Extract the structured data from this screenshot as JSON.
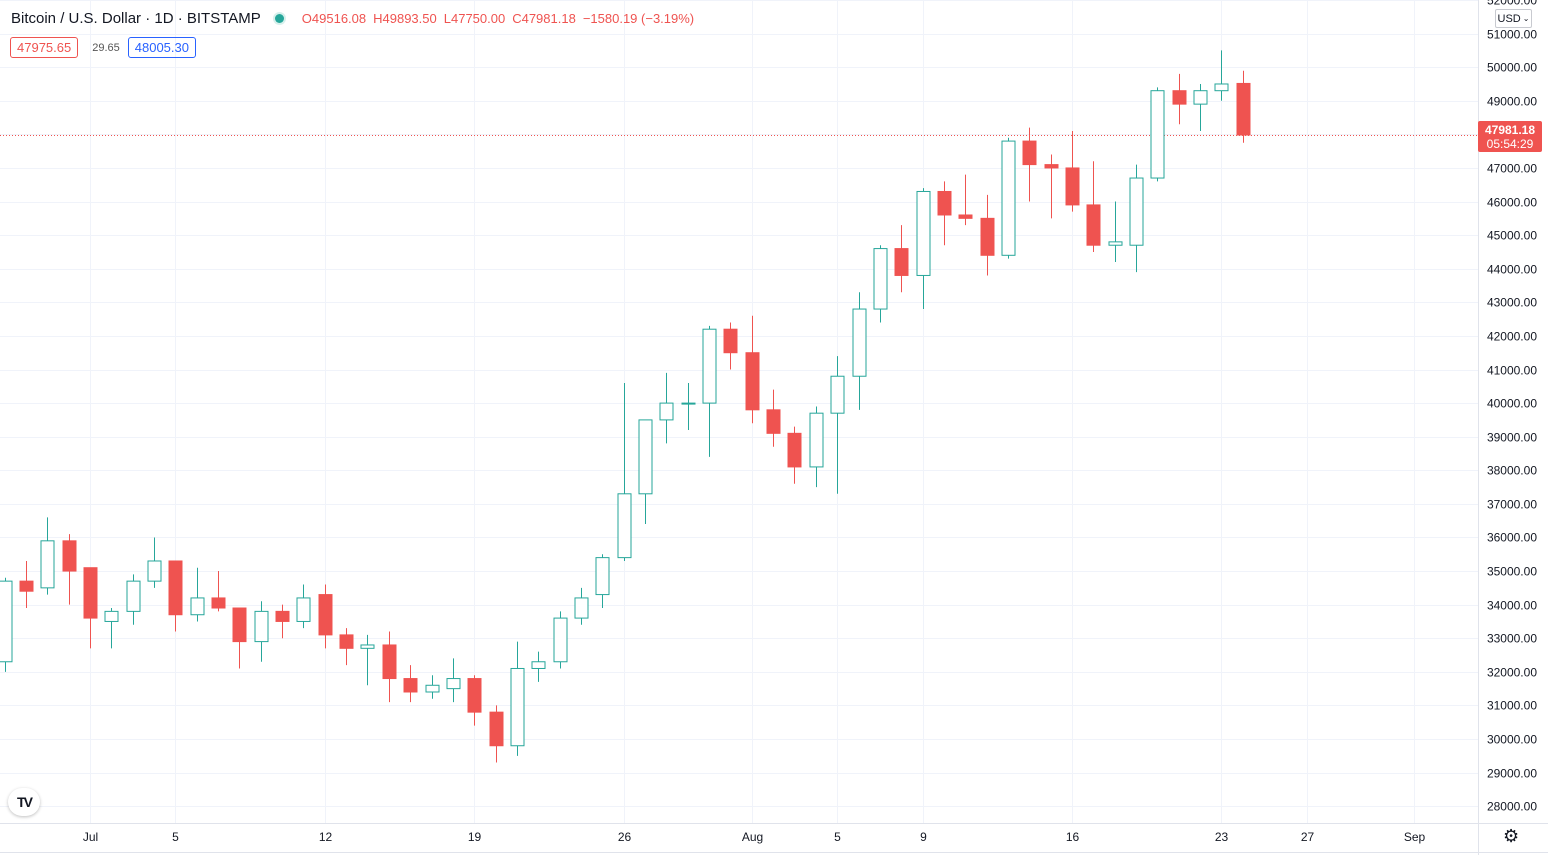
{
  "header": {
    "symbol": "Bitcoin / U.S. Dollar · 1D · BITSTAMP",
    "open": "O49516.08",
    "high": "H49893.50",
    "low": "L47750.00",
    "close": "C47981.18",
    "change": "−1580.19 (−3.19%)"
  },
  "quote": {
    "bid": "47975.65",
    "spread": "29.65",
    "ask": "48005.30"
  },
  "currency_label": "USD",
  "logo_text": "TV",
  "last_price": {
    "value": "47981.18",
    "countdown": "05:54:29"
  },
  "colors": {
    "up": "#26a69a",
    "down": "#ef5350",
    "grid": "#f0f3fa",
    "text": "#131722"
  },
  "icons": {
    "settings": "gear-icon",
    "dropdown": "chevron-down-icon",
    "logo": "tradingview-logo-icon"
  },
  "chart_data": {
    "type": "candlestick",
    "ylim": [
      27500,
      52000
    ],
    "y_ticks": [
      28000,
      29000,
      30000,
      31000,
      32000,
      33000,
      34000,
      35000,
      36000,
      37000,
      38000,
      39000,
      40000,
      41000,
      42000,
      43000,
      44000,
      45000,
      46000,
      47000,
      48000,
      49000,
      50000,
      51000,
      52000
    ],
    "y_tick_labels": [
      "28000.00",
      "29000.00",
      "30000.00",
      "31000.00",
      "32000.00",
      "33000.00",
      "34000.00",
      "35000.00",
      "36000.00",
      "37000.00",
      "38000.00",
      "39000.00",
      "40000.00",
      "41000.00",
      "42000.00",
      "43000.00",
      "44000.00",
      "45000.00",
      "46000.00",
      "47000.00",
      "48000.00",
      "49000.00",
      "50000.00",
      "51000.00",
      "52000.00"
    ],
    "x_tick_labels": [
      {
        "date": "2021-07-01",
        "label": "Jul"
      },
      {
        "date": "2021-07-05",
        "label": "5"
      },
      {
        "date": "2021-07-12",
        "label": "12"
      },
      {
        "date": "2021-07-19",
        "label": "19"
      },
      {
        "date": "2021-07-26",
        "label": "26"
      },
      {
        "date": "2021-08-01",
        "label": "Aug"
      },
      {
        "date": "2021-08-05",
        "label": "5"
      },
      {
        "date": "2021-08-09",
        "label": "9"
      },
      {
        "date": "2021-08-16",
        "label": "16"
      },
      {
        "date": "2021-08-23",
        "label": "23"
      },
      {
        "date": "2021-08-27",
        "label": "27"
      },
      {
        "date": "2021-09-01",
        "label": "Sep"
      }
    ],
    "x_range": [
      "2021-06-27",
      "2021-09-03"
    ],
    "last_price_line": 47981.18,
    "candles": [
      {
        "date": "2021-06-27",
        "o": 32300,
        "h": 34800,
        "l": 32000,
        "c": 34700
      },
      {
        "date": "2021-06-28",
        "o": 34700,
        "h": 35300,
        "l": 33900,
        "c": 34400
      },
      {
        "date": "2021-06-29",
        "o": 34500,
        "h": 36600,
        "l": 34300,
        "c": 35900
      },
      {
        "date": "2021-06-30",
        "o": 35900,
        "h": 36100,
        "l": 34000,
        "c": 35000
      },
      {
        "date": "2021-07-01",
        "o": 35100,
        "h": 35100,
        "l": 32700,
        "c": 33600
      },
      {
        "date": "2021-07-02",
        "o": 33500,
        "h": 33900,
        "l": 32700,
        "c": 33800
      },
      {
        "date": "2021-07-03",
        "o": 33800,
        "h": 34900,
        "l": 33400,
        "c": 34700
      },
      {
        "date": "2021-07-04",
        "o": 34700,
        "h": 36000,
        "l": 34500,
        "c": 35300
      },
      {
        "date": "2021-07-05",
        "o": 35300,
        "h": 35300,
        "l": 33200,
        "c": 33700
      },
      {
        "date": "2021-07-06",
        "o": 33700,
        "h": 35100,
        "l": 33500,
        "c": 34200
      },
      {
        "date": "2021-07-07",
        "o": 34200,
        "h": 35000,
        "l": 33800,
        "c": 33900
      },
      {
        "date": "2021-07-08",
        "o": 33900,
        "h": 33900,
        "l": 32100,
        "c": 32900
      },
      {
        "date": "2021-07-09",
        "o": 32900,
        "h": 34100,
        "l": 32300,
        "c": 33800
      },
      {
        "date": "2021-07-10",
        "o": 33800,
        "h": 34000,
        "l": 33000,
        "c": 33500
      },
      {
        "date": "2021-07-11",
        "o": 33500,
        "h": 34600,
        "l": 33300,
        "c": 34200
      },
      {
        "date": "2021-07-12",
        "o": 34300,
        "h": 34600,
        "l": 32700,
        "c": 33100
      },
      {
        "date": "2021-07-13",
        "o": 33100,
        "h": 33300,
        "l": 32200,
        "c": 32700
      },
      {
        "date": "2021-07-14",
        "o": 32700,
        "h": 33100,
        "l": 31600,
        "c": 32800
      },
      {
        "date": "2021-07-15",
        "o": 32800,
        "h": 33200,
        "l": 31100,
        "c": 31800
      },
      {
        "date": "2021-07-16",
        "o": 31800,
        "h": 32200,
        "l": 31100,
        "c": 31400
      },
      {
        "date": "2021-07-17",
        "o": 31400,
        "h": 31900,
        "l": 31200,
        "c": 31600
      },
      {
        "date": "2021-07-18",
        "o": 31500,
        "h": 32400,
        "l": 31100,
        "c": 31800
      },
      {
        "date": "2021-07-19",
        "o": 31800,
        "h": 31900,
        "l": 30400,
        "c": 30800
      },
      {
        "date": "2021-07-20",
        "o": 30800,
        "h": 31000,
        "l": 29300,
        "c": 29800
      },
      {
        "date": "2021-07-21",
        "o": 29800,
        "h": 32900,
        "l": 29500,
        "c": 32100
      },
      {
        "date": "2021-07-22",
        "o": 32100,
        "h": 32600,
        "l": 31700,
        "c": 32300
      },
      {
        "date": "2021-07-23",
        "o": 32300,
        "h": 33800,
        "l": 32100,
        "c": 33600
      },
      {
        "date": "2021-07-24",
        "o": 33600,
        "h": 34500,
        "l": 33400,
        "c": 34200
      },
      {
        "date": "2021-07-25",
        "o": 34300,
        "h": 35500,
        "l": 33900,
        "c": 35400
      },
      {
        "date": "2021-07-26",
        "o": 35400,
        "h": 40600,
        "l": 35300,
        "c": 37300
      },
      {
        "date": "2021-07-27",
        "o": 37300,
        "h": 39500,
        "l": 36400,
        "c": 39500
      },
      {
        "date": "2021-07-28",
        "o": 39500,
        "h": 40900,
        "l": 38800,
        "c": 40000
      },
      {
        "date": "2021-07-29",
        "o": 40000,
        "h": 40600,
        "l": 39200,
        "c": 40000
      },
      {
        "date": "2021-07-30",
        "o": 40000,
        "h": 42300,
        "l": 38400,
        "c": 42200
      },
      {
        "date": "2021-07-31",
        "o": 42200,
        "h": 42400,
        "l": 41000,
        "c": 41500
      },
      {
        "date": "2021-08-01",
        "o": 41500,
        "h": 42600,
        "l": 39400,
        "c": 39800
      },
      {
        "date": "2021-08-02",
        "o": 39800,
        "h": 40400,
        "l": 38700,
        "c": 39100
      },
      {
        "date": "2021-08-03",
        "o": 39100,
        "h": 39300,
        "l": 37600,
        "c": 38100
      },
      {
        "date": "2021-08-04",
        "o": 38100,
        "h": 39900,
        "l": 37500,
        "c": 39700
      },
      {
        "date": "2021-08-05",
        "o": 39700,
        "h": 41400,
        "l": 37300,
        "c": 40800
      },
      {
        "date": "2021-08-06",
        "o": 40800,
        "h": 43300,
        "l": 39800,
        "c": 42800
      },
      {
        "date": "2021-08-07",
        "o": 42800,
        "h": 44700,
        "l": 42400,
        "c": 44600
      },
      {
        "date": "2021-08-08",
        "o": 44600,
        "h": 45300,
        "l": 43300,
        "c": 43800
      },
      {
        "date": "2021-08-09",
        "o": 43800,
        "h": 46400,
        "l": 42800,
        "c": 46300
      },
      {
        "date": "2021-08-10",
        "o": 46300,
        "h": 46600,
        "l": 44700,
        "c": 45600
      },
      {
        "date": "2021-08-11",
        "o": 45600,
        "h": 46800,
        "l": 45300,
        "c": 45500
      },
      {
        "date": "2021-08-12",
        "o": 45500,
        "h": 46200,
        "l": 43800,
        "c": 44400
      },
      {
        "date": "2021-08-13",
        "o": 44400,
        "h": 47900,
        "l": 44300,
        "c": 47800
      },
      {
        "date": "2021-08-14",
        "o": 47800,
        "h": 48200,
        "l": 46000,
        "c": 47100
      },
      {
        "date": "2021-08-15",
        "o": 47100,
        "h": 47400,
        "l": 45500,
        "c": 47000
      },
      {
        "date": "2021-08-16",
        "o": 47000,
        "h": 48100,
        "l": 45700,
        "c": 45900
      },
      {
        "date": "2021-08-17",
        "o": 45900,
        "h": 47200,
        "l": 44500,
        "c": 44700
      },
      {
        "date": "2021-08-18",
        "o": 44700,
        "h": 46000,
        "l": 44200,
        "c": 44800
      },
      {
        "date": "2021-08-19",
        "o": 44700,
        "h": 47100,
        "l": 43900,
        "c": 46700
      },
      {
        "date": "2021-08-20",
        "o": 46700,
        "h": 49400,
        "l": 46600,
        "c": 49300
      },
      {
        "date": "2021-08-21",
        "o": 49300,
        "h": 49800,
        "l": 48300,
        "c": 48900
      },
      {
        "date": "2021-08-22",
        "o": 48900,
        "h": 49500,
        "l": 48100,
        "c": 49300
      },
      {
        "date": "2021-08-23",
        "o": 49300,
        "h": 50500,
        "l": 49000,
        "c": 49500
      },
      {
        "date": "2021-08-24",
        "o": 49516.08,
        "h": 49893.5,
        "l": 47750.0,
        "c": 47981.18
      }
    ]
  }
}
